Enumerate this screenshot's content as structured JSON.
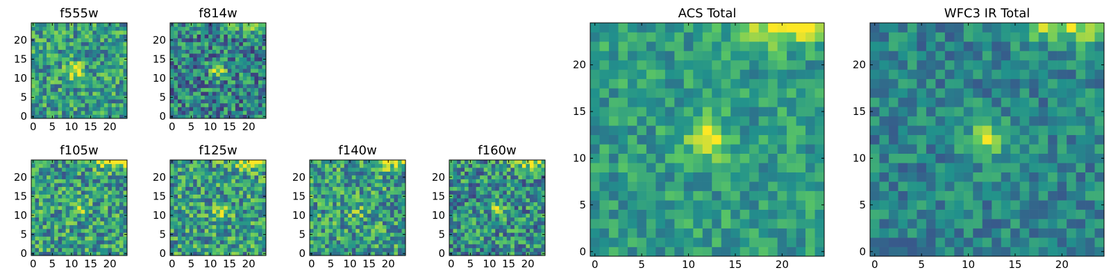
{
  "figure": {
    "colormap": [
      "#440154",
      "#3b528b",
      "#21918c",
      "#5ec962",
      "#fde725"
    ]
  },
  "chart_data": [
    {
      "type": "heatmap",
      "id": "f555w",
      "title": "f555w",
      "xticks": [
        0,
        5,
        10,
        15,
        20
      ],
      "yticks": [
        0,
        5,
        10,
        15,
        20
      ],
      "xlim": [
        -0.5,
        24.5
      ],
      "ylim": [
        -0.5,
        24.5
      ],
      "grid_size": [
        25,
        25
      ],
      "grid": false,
      "features": {
        "peak": [
          11,
          12
        ],
        "peak_value": 0.95,
        "corner": "none",
        "noise": 0.55,
        "background": 0.55,
        "seed": 11
      }
    },
    {
      "type": "heatmap",
      "id": "f814w",
      "title": "f814w",
      "xticks": [
        0,
        5,
        10,
        15,
        20
      ],
      "yticks": [
        0,
        5,
        10,
        15,
        20
      ],
      "xlim": [
        -0.5,
        24.5
      ],
      "ylim": [
        -0.5,
        24.5
      ],
      "grid_size": [
        25,
        25
      ],
      "grid": false,
      "features": {
        "peak": [
          12,
          12
        ],
        "peak_value": 0.9,
        "corner": "top-right",
        "noise": 0.6,
        "background": 0.45,
        "seed": 23
      }
    },
    {
      "type": "heatmap",
      "id": "f105w",
      "title": "f105w",
      "xticks": [
        0,
        5,
        10,
        15,
        20
      ],
      "yticks": [
        0,
        5,
        10,
        15,
        20
      ],
      "xlim": [
        -0.5,
        24.5
      ],
      "ylim": [
        -0.5,
        24.5
      ],
      "grid_size": [
        25,
        25
      ],
      "grid": false,
      "features": {
        "peak": [
          12,
          12
        ],
        "peak_value": 0.8,
        "corner": "top-right",
        "noise": 0.6,
        "background": 0.55,
        "seed": 37
      }
    },
    {
      "type": "heatmap",
      "id": "f125w",
      "title": "f125w",
      "xticks": [
        0,
        5,
        10,
        15,
        20
      ],
      "yticks": [
        0,
        5,
        10,
        15,
        20
      ],
      "xlim": [
        -0.5,
        24.5
      ],
      "ylim": [
        -0.5,
        24.5
      ],
      "grid_size": [
        25,
        25
      ],
      "grid": false,
      "features": {
        "peak": [
          13,
          11
        ],
        "peak_value": 0.85,
        "corner": "top-right",
        "noise": 0.6,
        "background": 0.55,
        "seed": 41
      }
    },
    {
      "type": "heatmap",
      "id": "f140w",
      "title": "f140w",
      "xticks": [
        0,
        5,
        10,
        15,
        20
      ],
      "yticks": [
        0,
        5,
        10,
        15,
        20
      ],
      "xlim": [
        -0.5,
        24.5
      ],
      "ylim": [
        -0.5,
        24.5
      ],
      "grid_size": [
        25,
        25
      ],
      "grid": false,
      "features": {
        "peak": [
          12,
          11
        ],
        "peak_value": 0.7,
        "corner": "top-right",
        "noise": 0.6,
        "background": 0.55,
        "seed": 53
      }
    },
    {
      "type": "heatmap",
      "id": "f160w",
      "title": "f160w",
      "xticks": [
        0,
        5,
        10,
        15,
        20
      ],
      "yticks": [
        0,
        5,
        10,
        15,
        20
      ],
      "xlim": [
        -0.5,
        24.5
      ],
      "ylim": [
        -0.5,
        24.5
      ],
      "grid_size": [
        25,
        25
      ],
      "grid": false,
      "features": {
        "peak": [
          12,
          12
        ],
        "peak_value": 0.75,
        "corner": "top-right",
        "noise": 0.6,
        "background": 0.5,
        "seed": 67
      }
    },
    {
      "type": "heatmap",
      "id": "acs-total",
      "title": "ACS Total",
      "xticks": [
        0,
        5,
        10,
        15,
        20
      ],
      "yticks": [
        0,
        5,
        10,
        15,
        20
      ],
      "xlim": [
        -0.5,
        24.5
      ],
      "ylim": [
        -0.5,
        24.5
      ],
      "grid_size": [
        25,
        25
      ],
      "grid": false,
      "features": {
        "peak": [
          12,
          12
        ],
        "peak_value": 1.0,
        "corner": "top-right",
        "noise": 0.35,
        "background": 0.55,
        "seed": 79
      }
    },
    {
      "type": "heatmap",
      "id": "wfc3-ir-total",
      "title": "WFC3 IR Total",
      "xticks": [
        0,
        5,
        10,
        15,
        20
      ],
      "yticks": [
        0,
        5,
        10,
        15,
        20
      ],
      "xlim": [
        -0.5,
        24.5
      ],
      "ylim": [
        -0.5,
        24.5
      ],
      "grid_size": [
        25,
        25
      ],
      "grid": false,
      "features": {
        "peak": [
          12,
          12
        ],
        "peak_value": 0.85,
        "corner": "top-right",
        "noise": 0.35,
        "background": 0.45,
        "seed": 97
      }
    }
  ]
}
